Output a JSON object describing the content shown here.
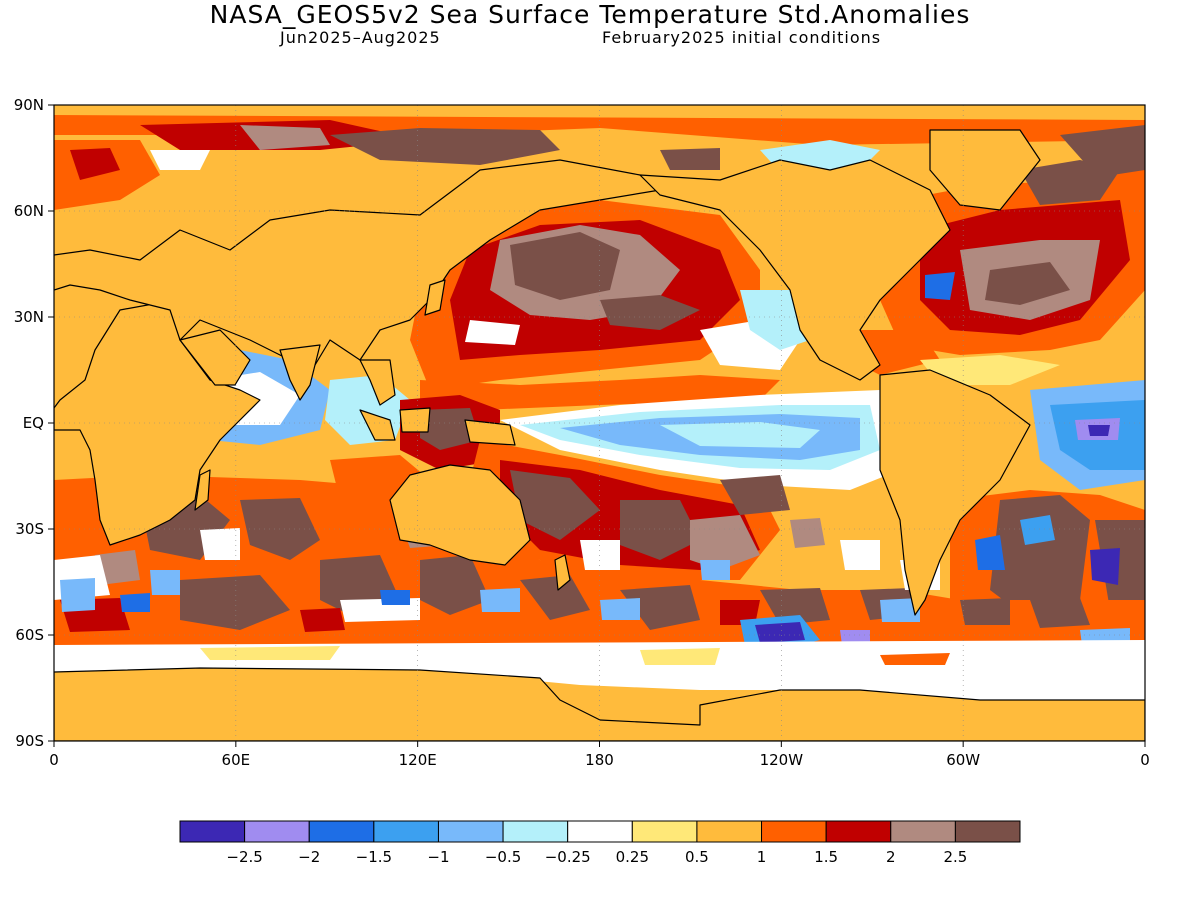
{
  "title": "NASA_GEOS5v2 Sea Surface Temperature Std.Anomalies",
  "subtitle_left": "Jun2025–Aug2025",
  "subtitle_right": "February2025 initial conditions",
  "map": {
    "projection": "equirectangular",
    "lon_range": [
      0,
      360
    ],
    "lat_range": [
      -90,
      90
    ],
    "land_color": "#ffbb3c",
    "grid": "dotted",
    "x_ticks": [
      {
        "lon": 0,
        "label": "0"
      },
      {
        "lon": 60,
        "label": "60E"
      },
      {
        "lon": 120,
        "label": "120E"
      },
      {
        "lon": 180,
        "label": "180"
      },
      {
        "lon": 240,
        "label": "120W"
      },
      {
        "lon": 300,
        "label": "60W"
      },
      {
        "lon": 360,
        "label": "0"
      }
    ],
    "y_ticks": [
      {
        "lat": 90,
        "label": "90N"
      },
      {
        "lat": 60,
        "label": "60N"
      },
      {
        "lat": 30,
        "label": "30N"
      },
      {
        "lat": 0,
        "label": "EQ"
      },
      {
        "lat": -30,
        "label": "30S"
      },
      {
        "lat": -60,
        "label": "60S"
      },
      {
        "lat": -90,
        "label": "90S"
      }
    ]
  },
  "colorbar": {
    "colors": [
      "#3c28b4",
      "#a08cf0",
      "#1e6ee6",
      "#3ca0f0",
      "#78b9fa",
      "#b4f0fa",
      "#ffffff",
      "#ffe878",
      "#ffbb3c",
      "#ff6000",
      "#c00000",
      "#b08a80",
      "#7a5048"
    ],
    "labels": [
      "−2.5",
      "−2",
      "−1.5",
      "−1",
      "−0.5",
      "−0.25",
      "0.25",
      "0.5",
      "1",
      "1.5",
      "2",
      "2.5"
    ]
  }
}
